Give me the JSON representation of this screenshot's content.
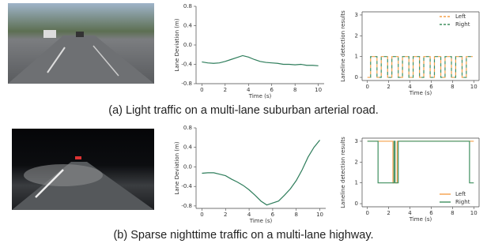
{
  "captions": [
    "(a) Light traffic on a multi-lane suburban arterial road.",
    "(b) Sparse nighttime traffic on a multi-lane highway."
  ],
  "chart_data": [
    {
      "type": "line",
      "xlabel": "Time (s)",
      "ylabel": "Lane Deviation (m)",
      "x": [
        0,
        0.5,
        1,
        1.5,
        2,
        2.5,
        3,
        3.5,
        4,
        4.5,
        5,
        5.5,
        6,
        6.5,
        7,
        7.5,
        8,
        8.5,
        9,
        9.5,
        10
      ],
      "series": [
        {
          "color": "#2e7d5b",
          "values": [
            -0.35,
            -0.37,
            -0.38,
            -0.37,
            -0.34,
            -0.3,
            -0.26,
            -0.22,
            -0.25,
            -0.3,
            -0.34,
            -0.36,
            -0.37,
            -0.38,
            -0.4,
            -0.4,
            -0.41,
            -0.4,
            -0.42,
            -0.42,
            -0.43
          ]
        }
      ],
      "xlim": [
        -0.5,
        10.5
      ],
      "xticks": [
        0,
        2,
        4,
        6,
        8,
        10
      ],
      "ylim": [
        -0.8,
        0.8
      ],
      "yticks": [
        -0.8,
        -0.4,
        {
          "value": 0,
          "label": "0.0"
        },
        0.4,
        0.8
      ]
    },
    {
      "type": "line",
      "xlabel": "Time (s)",
      "ylabel": "Laneline detection results",
      "series": [
        {
          "name": "Left",
          "color": "#f5a04a",
          "linestyle": "dashed",
          "x": [
            0,
            0.3,
            0.3,
            0.9,
            0.9,
            1.3,
            1.3,
            1.9,
            1.9,
            2.3,
            2.3,
            2.9,
            2.9,
            3.3,
            3.3,
            3.9,
            3.9,
            4.3,
            4.3,
            4.9,
            4.9,
            5.3,
            5.3,
            5.9,
            5.9,
            6.3,
            6.3,
            6.9,
            6.9,
            7.3,
            7.3,
            7.9,
            7.9,
            8.3,
            8.3,
            8.9,
            8.9,
            9.3,
            9.3,
            9.9
          ],
          "values": [
            0,
            0,
            1,
            1,
            0,
            0,
            1,
            1,
            0,
            0,
            1,
            1,
            0,
            0,
            1,
            1,
            0,
            0,
            1,
            1,
            0,
            0,
            1,
            1,
            0,
            0,
            1,
            1,
            0,
            0,
            1,
            1,
            0,
            0,
            1,
            1,
            0,
            0,
            1,
            1
          ]
        },
        {
          "name": "Right",
          "color": "#3f8f5f",
          "linestyle": "dashed",
          "x": [
            0,
            0.3,
            0.3,
            0.9,
            0.9,
            1.3,
            1.3,
            1.9,
            1.9,
            2.3,
            2.3,
            2.9,
            2.9,
            3.3,
            3.3,
            3.9,
            3.9,
            4.3,
            4.3,
            4.9,
            4.9,
            5.3,
            5.3,
            5.9,
            5.9,
            6.3,
            6.3,
            6.9,
            6.9,
            7.3,
            7.3,
            7.9,
            7.9,
            8.3,
            8.3,
            8.9,
            8.9,
            9.3,
            9.3,
            9.9
          ],
          "values": [
            0,
            0,
            1,
            1,
            0,
            0,
            1,
            1,
            0,
            0,
            1,
            1,
            0,
            0,
            1,
            1,
            0,
            0,
            1,
            1,
            0,
            0,
            1,
            1,
            0,
            0,
            1,
            1,
            0,
            0,
            1,
            1,
            0,
            0,
            1,
            1,
            0,
            0,
            1,
            1
          ]
        }
      ],
      "xlim": [
        -0.5,
        10.5
      ],
      "xticks": [
        0,
        2,
        4,
        6,
        8,
        10
      ],
      "ylim": [
        -0.15,
        3.15
      ],
      "yticks": [
        0,
        1,
        2,
        3
      ],
      "legend": "upper right"
    },
    {
      "type": "line",
      "xlabel": "Time (s)",
      "ylabel": "Lane Deviation (m)",
      "x": [
        0,
        0.5,
        1,
        1.5,
        2,
        2.5,
        3,
        3.5,
        4,
        4.5,
        5,
        5.5,
        6,
        6.5,
        7,
        7.5,
        8,
        8.5,
        9,
        9.5,
        10
      ],
      "series": [
        {
          "color": "#2e7d5b",
          "values": [
            -0.13,
            -0.12,
            -0.12,
            -0.15,
            -0.18,
            -0.25,
            -0.31,
            -0.38,
            -0.47,
            -0.58,
            -0.7,
            -0.78,
            -0.74,
            -0.7,
            -0.58,
            -0.45,
            -0.28,
            -0.06,
            0.2,
            0.4,
            0.55
          ]
        }
      ],
      "xlim": [
        -0.5,
        10.5
      ],
      "xticks": [
        0,
        2,
        4,
        6,
        8,
        10
      ],
      "ylim": [
        -0.85,
        0.8
      ],
      "yticks": [
        -0.8,
        -0.4,
        {
          "value": 0,
          "label": "0.0"
        },
        0.4,
        0.8
      ]
    },
    {
      "type": "line",
      "xlabel": "Time (s)",
      "ylabel": "Laneline detection results",
      "series": [
        {
          "name": "Left",
          "color": "#f5a04a",
          "x": [
            0,
            2.4,
            2.4,
            2.8,
            2.8,
            10
          ],
          "values": [
            3,
            3,
            1,
            1,
            3,
            3
          ]
        },
        {
          "name": "Right",
          "color": "#3f8f5f",
          "x": [
            0,
            1.0,
            1.0,
            2.5,
            2.5,
            2.6,
            2.6,
            2.9,
            2.9,
            9.6,
            9.6,
            10
          ],
          "values": [
            3,
            3,
            1,
            1,
            3,
            3,
            1,
            1,
            3,
            3,
            1,
            1
          ]
        }
      ],
      "xlim": [
        -0.5,
        10.5
      ],
      "xticks": [
        0,
        2,
        4,
        6,
        8,
        10
      ],
      "ylim": [
        -0.15,
        3.15
      ],
      "yticks": [
        0,
        1,
        2,
        3
      ],
      "legend": "lower right"
    }
  ]
}
